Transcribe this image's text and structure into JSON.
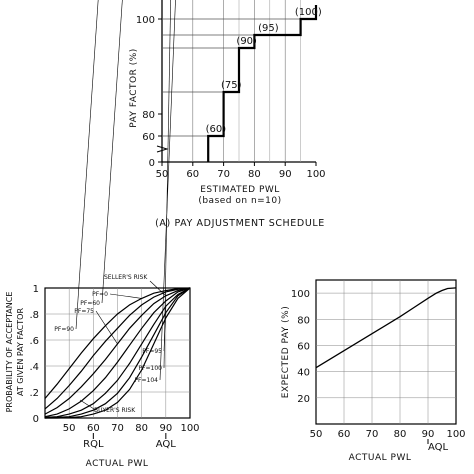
{
  "chart_data": [
    {
      "type": "line",
      "subtype": "step",
      "caption": "(A)  PAY ADJUSTMENT SCHEDULE",
      "xlabel": "ESTIMATED PWL",
      "xlabel_sub": "(based on n=10)",
      "ylabel": "PAY FACTOR (%)",
      "xlim": [
        50,
        100
      ],
      "ylim_shown": [
        60,
        105
      ],
      "x_ticks": [
        "50",
        "60",
        "70",
        "80",
        "90",
        "100"
      ],
      "y_ticks": [
        "0",
        "60",
        "80",
        "100"
      ],
      "steps": [
        {
          "x_start": 65,
          "x_end": 70,
          "pay_factor": 60,
          "label": "(60)"
        },
        {
          "x_start": 70,
          "x_end": 75,
          "pay_factor": 75,
          "label": "(75)"
        },
        {
          "x_start": 75,
          "x_end": 80,
          "pay_factor": 90,
          "label": "(90)"
        },
        {
          "x_start": 80,
          "x_end": 95,
          "pay_factor": 95,
          "label": "(95)"
        },
        {
          "x_start": 95,
          "x_end": 100,
          "pay_factor": 100,
          "label": "(100)"
        },
        {
          "x_start": 100,
          "x_end": 100,
          "pay_factor": 104,
          "label": ""
        }
      ]
    },
    {
      "type": "line",
      "xlabel": "ACTUAL PWL",
      "ylabel": "PROBABILITY OF ACCEPTANCE AT GIVEN PAY FACTOR",
      "xlim": [
        40,
        100
      ],
      "ylim": [
        0,
        1
      ],
      "x_ticks": [
        "50",
        "60",
        "70",
        "80",
        "90",
        "100"
      ],
      "y_ticks": [
        "0",
        ".2",
        ".4",
        ".6",
        ".8",
        "1"
      ],
      "x_markers": [
        {
          "label": "RQL",
          "x": 60
        },
        {
          "label": "AQL",
          "x": 90
        }
      ],
      "annotations": [
        "SELLER'S RISK",
        "BUYER'S RISK"
      ],
      "x": [
        40,
        45,
        50,
        55,
        60,
        65,
        70,
        75,
        80,
        85,
        90,
        95,
        100
      ],
      "series": [
        {
          "name": "PF=0",
          "values": [
            0.15,
            0.26,
            0.38,
            0.5,
            0.61,
            0.71,
            0.8,
            0.87,
            0.92,
            0.96,
            0.98,
            0.995,
            1.0
          ]
        },
        {
          "name": "PF=60",
          "values": [
            0.07,
            0.15,
            0.25,
            0.36,
            0.48,
            0.59,
            0.69,
            0.79,
            0.87,
            0.93,
            0.97,
            0.99,
            1.0
          ]
        },
        {
          "name": "PF=75",
          "values": [
            0.03,
            0.08,
            0.15,
            0.24,
            0.34,
            0.45,
            0.57,
            0.69,
            0.79,
            0.88,
            0.94,
            0.98,
            1.0
          ]
        },
        {
          "name": "PF=90",
          "values": [
            0.01,
            0.03,
            0.07,
            0.13,
            0.21,
            0.31,
            0.43,
            0.56,
            0.69,
            0.81,
            0.9,
            0.97,
            1.0
          ]
        },
        {
          "name": "PF=95",
          "values": [
            0.005,
            0.01,
            0.03,
            0.06,
            0.11,
            0.19,
            0.29,
            0.42,
            0.57,
            0.72,
            0.86,
            0.95,
            1.0
          ]
        },
        {
          "name": "PF=100",
          "values": [
            0.0,
            0.005,
            0.01,
            0.03,
            0.06,
            0.11,
            0.19,
            0.31,
            0.47,
            0.64,
            0.81,
            0.94,
            1.0
          ]
        },
        {
          "name": "PF=104",
          "values": [
            0.0,
            0.0,
            0.003,
            0.01,
            0.03,
            0.06,
            0.12,
            0.22,
            0.37,
            0.57,
            0.77,
            0.92,
            1.0
          ]
        }
      ]
    },
    {
      "type": "line",
      "xlabel": "ACTUAL PWL",
      "ylabel": "EXPECTED PAY (%)",
      "xlim": [
        50,
        100
      ],
      "ylim": [
        0,
        110
      ],
      "x_ticks": [
        "50",
        "60",
        "70",
        "80",
        "90",
        "100"
      ],
      "y_ticks": [
        "0",
        "20",
        "40",
        "60",
        "80",
        "100"
      ],
      "x_markers": [
        {
          "label": "AQL",
          "x": 90
        }
      ],
      "x": [
        50,
        60,
        70,
        80,
        85,
        90,
        93,
        95,
        97,
        100
      ],
      "series": [
        {
          "name": "",
          "values": [
            43,
            56,
            69,
            82,
            89,
            96,
            100,
            102,
            103.5,
            104
          ]
        }
      ]
    }
  ]
}
